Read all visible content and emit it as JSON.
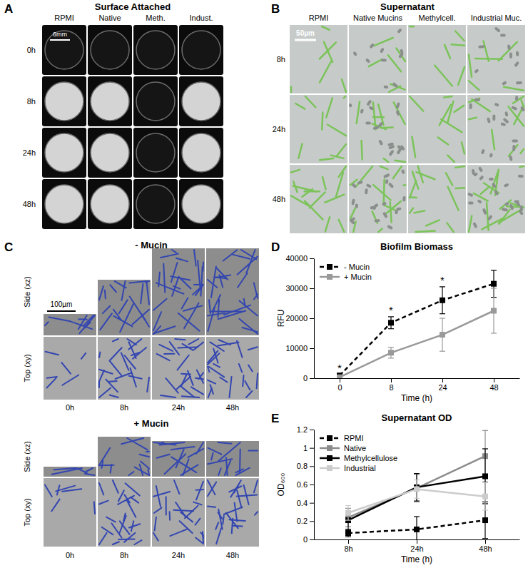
{
  "figure": {
    "panels": [
      {
        "label": "A",
        "title": "Surface Attached",
        "columns": [
          "RPMI",
          "Native",
          "Meth.",
          "Indust."
        ],
        "rows": [
          "0h",
          "8h",
          "24h",
          "48h"
        ],
        "scale_bar": "6mm"
      },
      {
        "label": "B",
        "title": "Supernatant",
        "columns": [
          "RPMI",
          "Native Mucins",
          "Methylcell.",
          "Industrial Muc."
        ],
        "rows": [
          "8h",
          "24h",
          "48h"
        ],
        "scale_bar": "50µm"
      },
      {
        "label": "C",
        "groups": [
          "- Mucin",
          "+ Mucin"
        ],
        "views": [
          "Side (xz)",
          "Top (xy)"
        ],
        "columns": [
          "0h",
          "8h",
          "24h",
          "48h"
        ],
        "scale_bar": "100µm"
      }
    ]
  },
  "chart_data": [
    {
      "type": "line",
      "label": "D",
      "title": "Biofilm Biomass",
      "x_label": "Time (h)",
      "y_label": "RFU",
      "categories": [
        "0",
        "8",
        "24",
        "48"
      ],
      "ylim": [
        0,
        40000
      ],
      "yticks": [
        0,
        10000,
        20000,
        30000,
        40000
      ],
      "legend": "top-left",
      "marker": "square",
      "annotations": [
        "*",
        "*",
        "*",
        null
      ],
      "series": [
        {
          "name": "- Mucin",
          "color": "#000000",
          "line_style": "dashed",
          "values": [
            900,
            18500,
            26000,
            31500
          ],
          "errors": [
            300,
            2000,
            4500,
            4500
          ]
        },
        {
          "name": "+ Mucin",
          "color": "#999999",
          "line_style": "solid",
          "values": [
            300,
            8500,
            14500,
            22500
          ],
          "errors": [
            500,
            1800,
            5500,
            7500
          ]
        }
      ]
    },
    {
      "type": "line",
      "label": "E",
      "title": "Supernatant OD",
      "x_label": "Time (h)",
      "y_label": "OD₆₀₀",
      "categories": [
        "8h",
        "24h",
        "48h"
      ],
      "ylim": [
        0,
        1.2
      ],
      "yticks": [
        0,
        0.2,
        0.4,
        0.6,
        0.8,
        1,
        1.2
      ],
      "legend": "top-left",
      "marker": "square",
      "series": [
        {
          "name": "RPMI",
          "color": "#000000",
          "line_style": "dashed",
          "values": [
            0.07,
            0.11,
            0.21
          ],
          "errors": [
            0.04,
            0.14,
            0.2
          ]
        },
        {
          "name": "Native",
          "color": "#8c8c8c",
          "line_style": "solid",
          "values": [
            0.24,
            0.56,
            0.91
          ],
          "errors": [
            0.1,
            0.15,
            0.28
          ]
        },
        {
          "name": "Methylcellulose",
          "color": "#000000",
          "line_style": "solid",
          "values": [
            0.21,
            0.57,
            0.69
          ],
          "errors": [
            0.1,
            0.15,
            0.3
          ]
        },
        {
          "name": "Industrial",
          "color": "#cccccc",
          "line_style": "solid",
          "values": [
            0.29,
            0.55,
            0.47
          ],
          "errors": [
            0.08,
            0.1,
            0.15
          ]
        }
      ]
    }
  ]
}
